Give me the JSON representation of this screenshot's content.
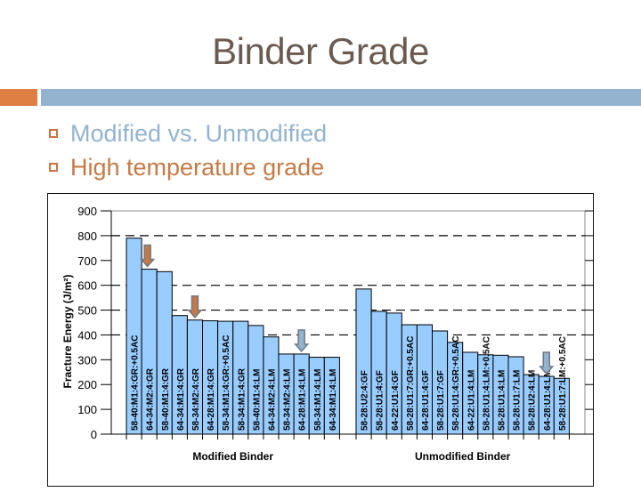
{
  "slide": {
    "title": "Binder Grade",
    "bullets": [
      {
        "text": "Modified vs. Unmodified",
        "color": "#93b3cf"
      },
      {
        "text": "High temperature grade",
        "color": "#c57a45"
      }
    ],
    "accent_colors": {
      "orange": "#e07f44",
      "blue": "#93b3cf",
      "title": "#6b5a50"
    }
  },
  "chart_data": {
    "type": "bar",
    "title": "",
    "ylabel": "Fracture Energy (J/m²)",
    "xlabel": "",
    "ylim": [
      0,
      900
    ],
    "yticks": [
      0,
      100,
      200,
      300,
      400,
      500,
      600,
      700,
      800,
      900
    ],
    "grid": {
      "dashed_at": [
        400,
        500,
        600,
        800
      ]
    },
    "bar_color": "#99ccff",
    "groups": [
      {
        "name": "Modified Binder",
        "categories": [
          "58-40:M1:4:GR:+0.5AC",
          "64-34:M2:4:GR",
          "58-40:M1:4:GR",
          "64-34:M1:4:GR",
          "58-34:M2:4:GR",
          "64-28:M1:4:GR",
          "58-34:M1:4:GR:+0.5AC",
          "58-34:M1:4:GR",
          "58-40:M1:4:LM",
          "64-34:M2:4:LM",
          "58-34:M2:4:LM",
          "64-28:M1:4:LM",
          "58-34:M1:4:LM",
          "64-34:M1:4:LM"
        ],
        "values": [
          790,
          665,
          655,
          478,
          460,
          457,
          455,
          455,
          438,
          392,
          323,
          323,
          310,
          310
        ]
      },
      {
        "name": "Unmodified Binder",
        "categories": [
          "58-28:U2:4:GF",
          "58-28:U1:4:GF",
          "64-22:U1:4:GF",
          "58-28:U1:7:GR:+0.5AC",
          "64-28:U1:4:GF",
          "58-28:U1:7:GF",
          "58-28:U1:4:GR:+0.5AC",
          "64-22:U1:4:LM",
          "58-28:U1:4:LM:+0.5AC",
          "58-28:U1:4:LM",
          "58-28:U1:7:LM",
          "58-28:U2:4:LM",
          "64-28:U1:4:LM",
          "58-28:U1:7:LM:+0.5AC"
        ],
        "values": [
          585,
          495,
          488,
          441,
          441,
          416,
          370,
          330,
          320,
          318,
          312,
          240,
          233,
          225
        ]
      }
    ],
    "annotations": [
      {
        "type": "down-arrow",
        "color": "#c57a45",
        "over": "64-34:M2:4:GR"
      },
      {
        "type": "down-arrow",
        "color": "#c57a45",
        "over": "58-34:M2:4:GR"
      },
      {
        "type": "down-arrow",
        "color": "#93b3cf",
        "over": "64-28:M1:4:LM"
      },
      {
        "type": "down-arrow",
        "color": "#93b3cf",
        "over": "64-28:U1:4:LM"
      }
    ],
    "group_labels": [
      "Modified Binder",
      "Unmodified Binder"
    ]
  }
}
